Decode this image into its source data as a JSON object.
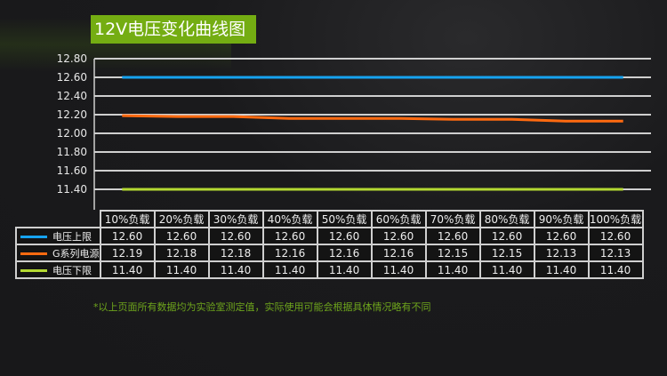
{
  "title": "12V电压变化曲线图",
  "note": "*以上页面所有数据均为实验室测定值，实际使用可能会根据具体情况略有不同",
  "chart_data": {
    "type": "line",
    "title": "12V电压变化曲线图",
    "categories": [
      "10%负载",
      "20%负载",
      "30%负载",
      "40%负载",
      "50%负载",
      "60%负载",
      "70%负载",
      "80%负载",
      "90%负载",
      "100%负载"
    ],
    "yticks": [
      "12.80",
      "12.60",
      "12.40",
      "12.20",
      "12.00",
      "11.80",
      "11.60",
      "11.40"
    ],
    "ylim": [
      11.4,
      12.8
    ],
    "grid": true,
    "legend": "table-left",
    "series": [
      {
        "name": "电压上限",
        "color": "#16a3f0",
        "values": [
          12.6,
          12.6,
          12.6,
          12.6,
          12.6,
          12.6,
          12.6,
          12.6,
          12.6,
          12.6
        ],
        "labels": [
          "12.60",
          "12.60",
          "12.60",
          "12.60",
          "12.60",
          "12.60",
          "12.60",
          "12.60",
          "12.60",
          "12.60"
        ]
      },
      {
        "name": "G系列电源",
        "color": "#ff6a10",
        "values": [
          12.19,
          12.18,
          12.18,
          12.16,
          12.16,
          12.16,
          12.15,
          12.15,
          12.13,
          12.13
        ],
        "labels": [
          "12.19",
          "12.18",
          "12.18",
          "12.16",
          "12.16",
          "12.16",
          "12.15",
          "12.15",
          "12.13",
          "12.13"
        ]
      },
      {
        "name": "电压下限",
        "color": "#b4d932",
        "values": [
          11.4,
          11.4,
          11.4,
          11.4,
          11.4,
          11.4,
          11.4,
          11.4,
          11.4,
          11.4
        ],
        "labels": [
          "11.40",
          "11.40",
          "11.40",
          "11.40",
          "11.40",
          "11.40",
          "11.40",
          "11.40",
          "11.40",
          "11.40"
        ]
      }
    ]
  }
}
